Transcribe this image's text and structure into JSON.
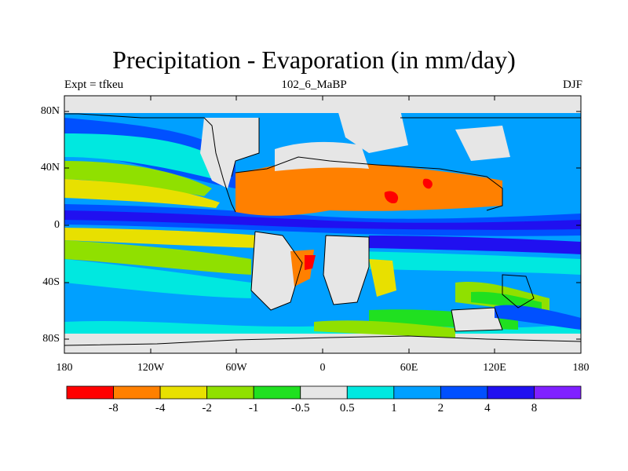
{
  "title": "Precipitation - Evaporation (in mm/day)",
  "subtitle_left": "Expt = tfkeu",
  "subtitle_center": "102_6_MaBP",
  "subtitle_right": "DJF",
  "lat_ticks": [
    "80N",
    "40N",
    "0",
    "40S",
    "80S"
  ],
  "lon_ticks": [
    "180",
    "120W",
    "60W",
    "0",
    "60E",
    "120E",
    "180"
  ],
  "colorbar": {
    "colors": [
      "#ff0000",
      "#ff8000",
      "#e8e000",
      "#90e000",
      "#20e020",
      "#e6e6e6",
      "#00e8e0",
      "#00a0ff",
      "#0050ff",
      "#2010f0",
      "#8020ff"
    ],
    "labels": [
      "-8",
      "-4",
      "-2",
      "-1",
      "-0.5",
      "0.5",
      "1",
      "2",
      "4",
      "8"
    ]
  }
}
